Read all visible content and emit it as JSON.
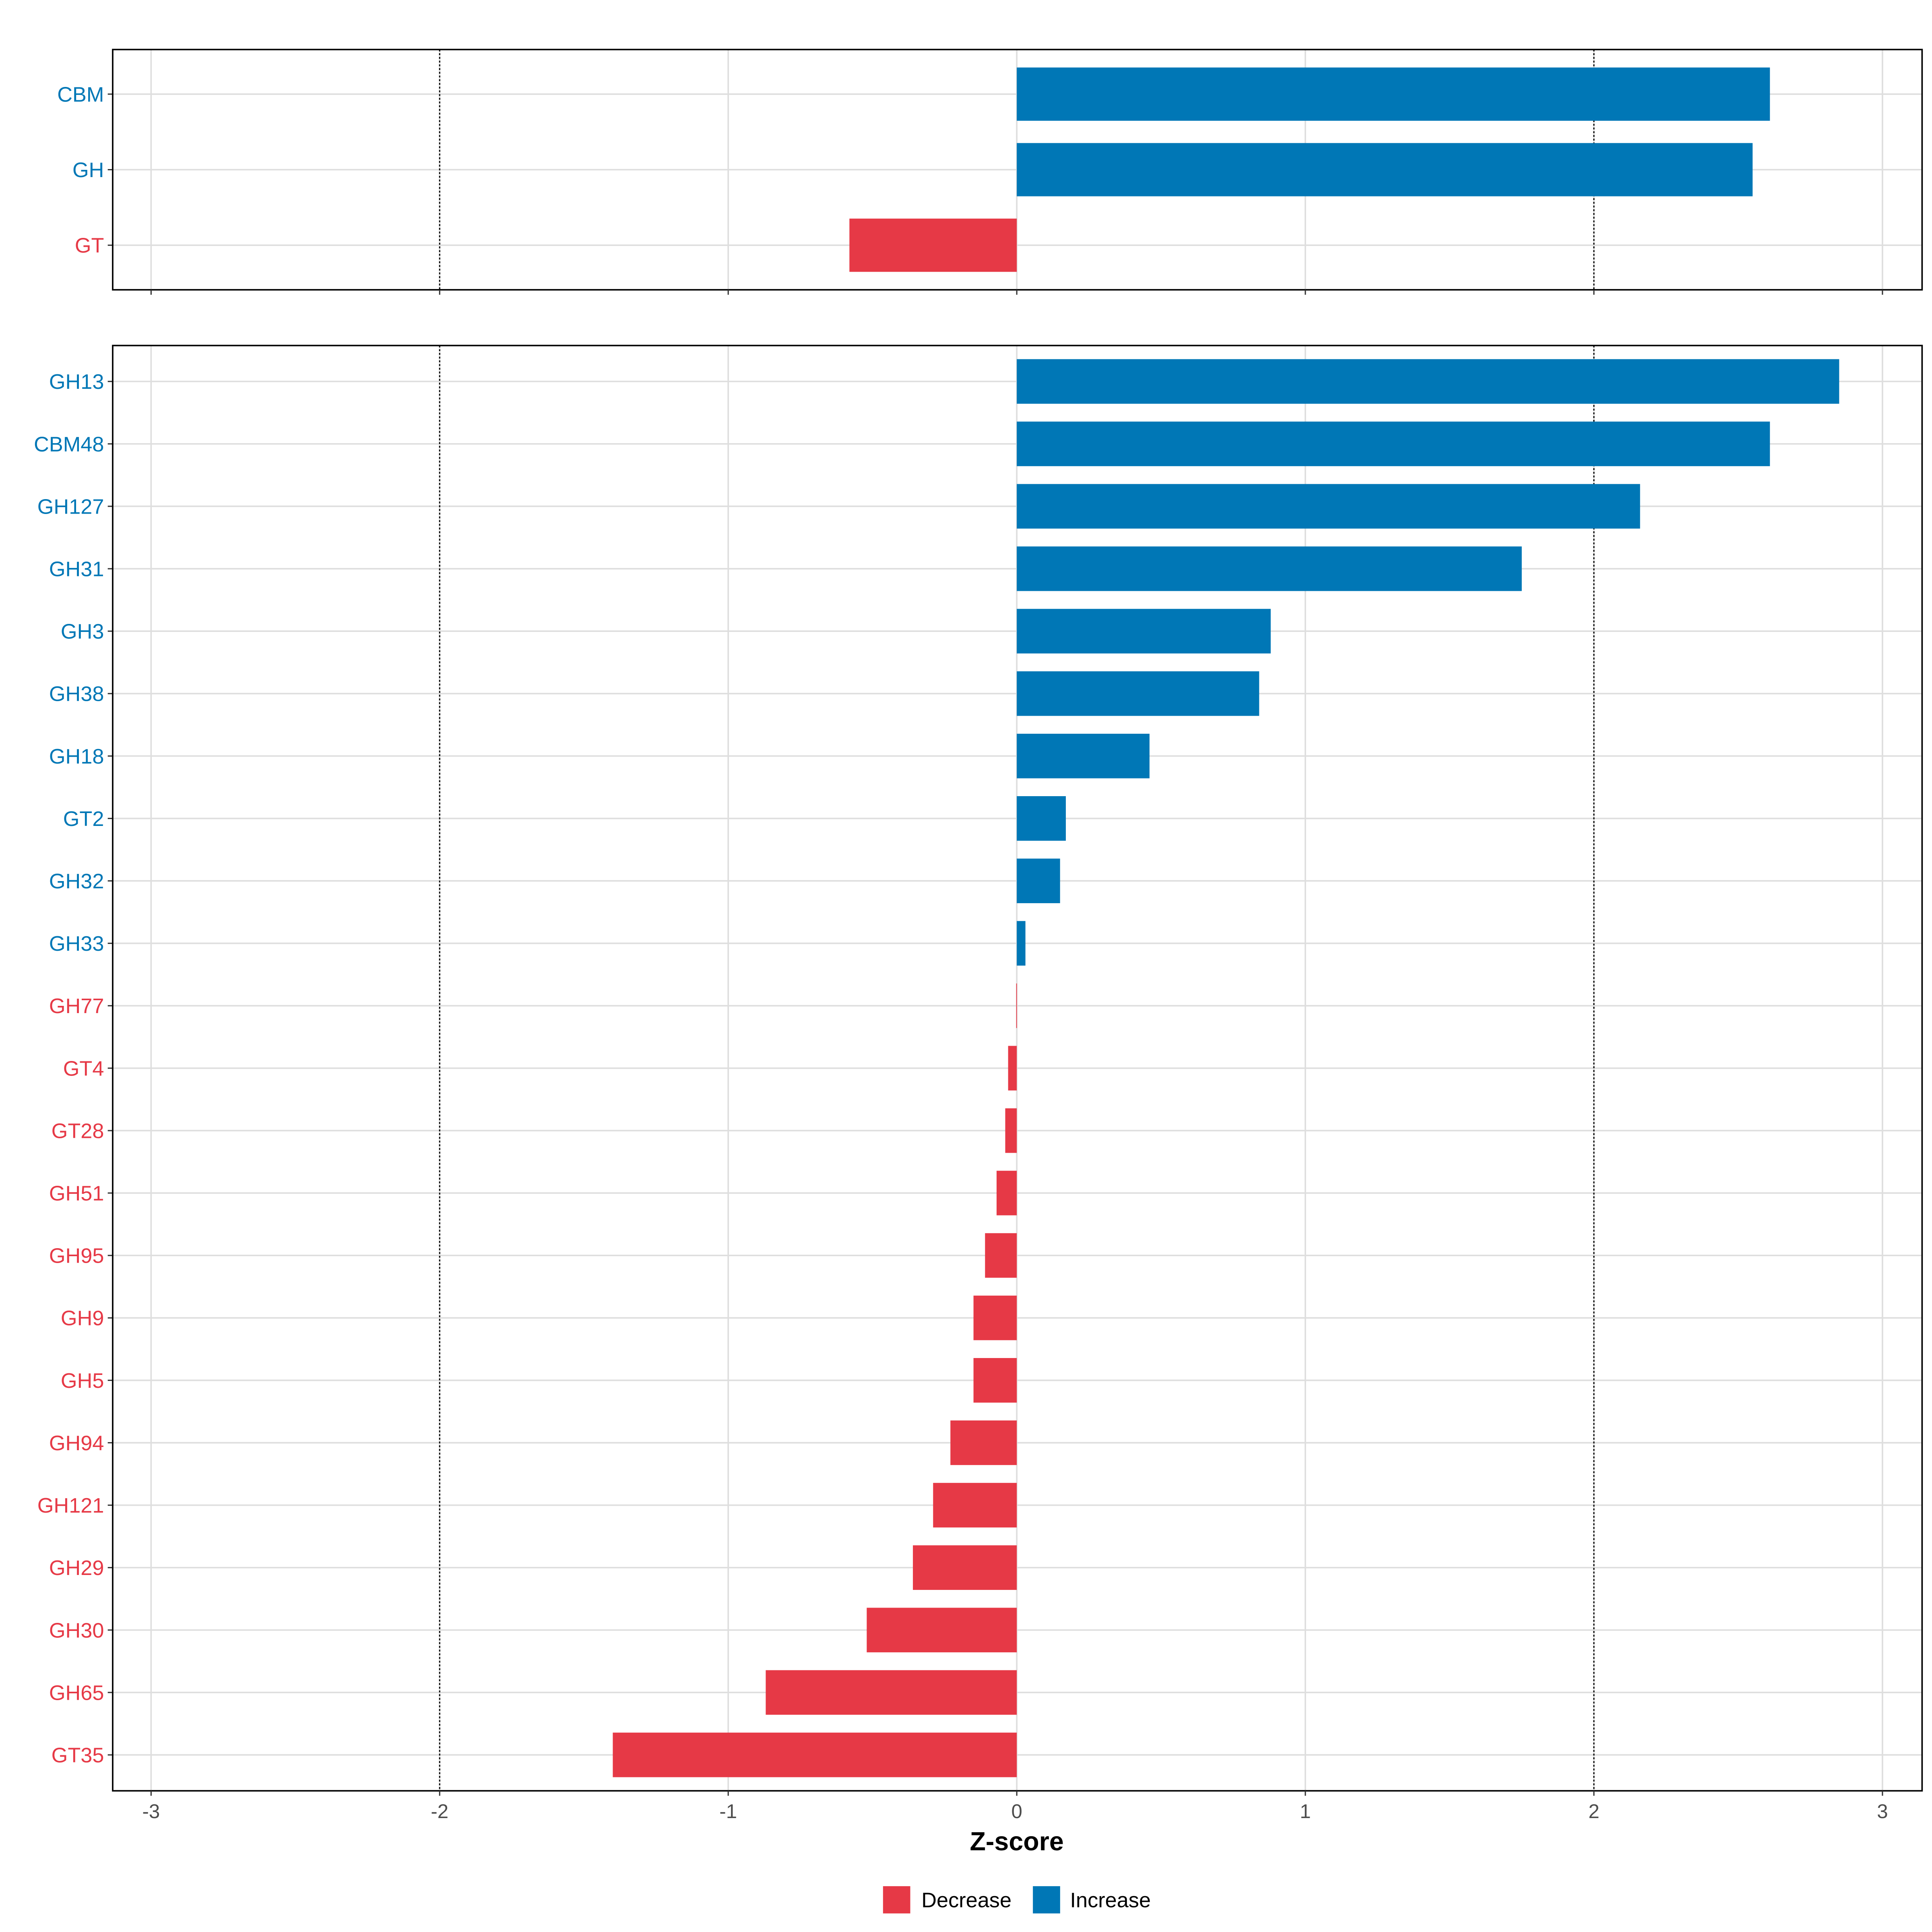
{
  "chart_data": [
    {
      "type": "bar",
      "orientation": "horizontal",
      "panel": "top",
      "categories": [
        "CBM",
        "GH",
        "GT"
      ],
      "values": [
        2.61,
        2.55,
        -0.58
      ],
      "xlim": [
        -3.15,
        3.15
      ],
      "grid": true,
      "reference_lines": [
        -2,
        2
      ]
    },
    {
      "type": "bar",
      "orientation": "horizontal",
      "panel": "bottom",
      "categories": [
        "GH13",
        "CBM48",
        "GH127",
        "GH31",
        "GH3",
        "GH38",
        "GH18",
        "GT2",
        "GH32",
        "GH33",
        "GH77",
        "GT4",
        "GT28",
        "GH51",
        "GH95",
        "GH9",
        "GH5",
        "GH94",
        "GH121",
        "GH29",
        "GH30",
        "GH65",
        "GT35"
      ],
      "values": [
        2.85,
        2.61,
        2.16,
        1.75,
        0.88,
        0.84,
        0.46,
        0.17,
        0.15,
        0.03,
        -0.002,
        -0.03,
        -0.04,
        -0.07,
        -0.11,
        -0.15,
        -0.15,
        -0.23,
        -0.29,
        -0.36,
        -0.52,
        -0.87,
        -1.4
      ],
      "xlim": [
        -3.15,
        3.15
      ],
      "grid": true,
      "reference_lines": [
        -2,
        2
      ]
    }
  ],
  "x_ticks": [
    "-3",
    "-2",
    "-1",
    "0",
    "1",
    "2",
    "3"
  ],
  "x_tick_values": [
    -3,
    -2,
    -1,
    0,
    1,
    2,
    3
  ],
  "xlabel": "Z-score",
  "legend": {
    "placement": "bottom",
    "items": [
      {
        "label": "Decrease",
        "color": "#E63946"
      },
      {
        "label": "Increase",
        "color": "#0077B6"
      }
    ]
  },
  "colors": {
    "increase": "#0077B6",
    "decrease": "#E63946",
    "grid": "#DEDEDE"
  }
}
